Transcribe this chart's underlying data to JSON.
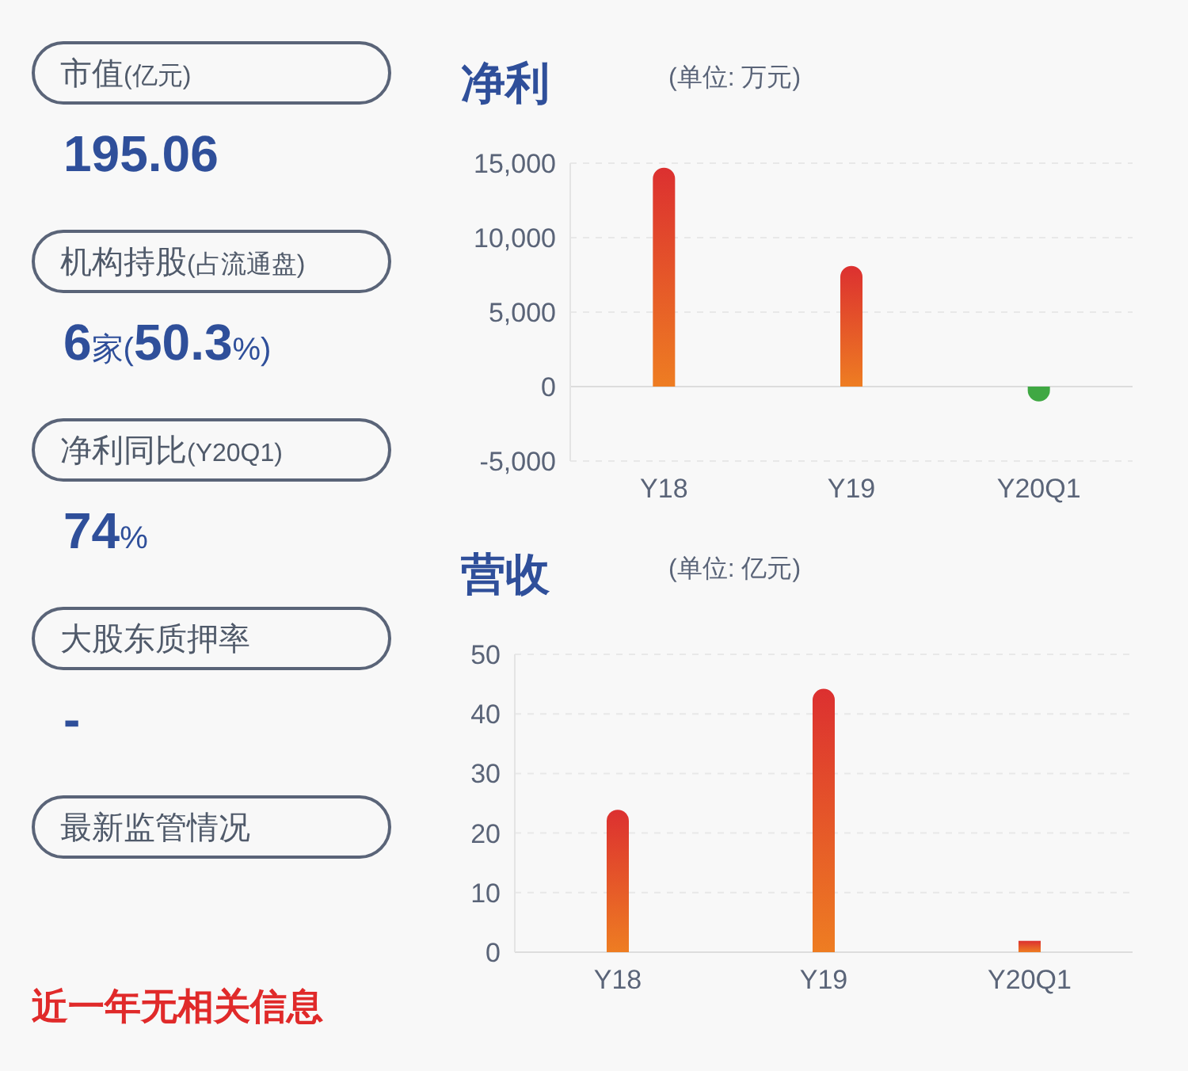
{
  "chart_data": [
    {
      "type": "other",
      "annotations": [
        "市值(亿元)",
        "195.06",
        "机构持股(占流通盘)",
        "6家(50.3%)",
        "净利同比(Y20Q1)",
        "74%",
        "大股东质押率",
        "-",
        "最新监管情况",
        "近一年无相关信息"
      ]
    },
    {
      "type": "bar",
      "title": "净利",
      "subtitle": "(单位: 万元)",
      "categories": [
        "Y18",
        "Y19",
        "Y20Q1"
      ],
      "values": [
        14700,
        8100,
        -1000
      ],
      "colors": [
        "#dc3030",
        "#dc3030",
        "#3fa843"
      ],
      "ylim": [
        -5000,
        15000
      ],
      "yticks": [
        {
          "value": -5000,
          "label": "-5,000"
        },
        0,
        {
          "value": 5000,
          "label": "5,000"
        },
        {
          "value": 10000,
          "label": "10,000"
        },
        {
          "value": 15000,
          "label": "15,000"
        }
      ],
      "grid": "y"
    },
    {
      "type": "bar",
      "title": "营收",
      "subtitle": "(单位: 亿元)",
      "categories": [
        "Y18",
        "Y19",
        "Y20Q1"
      ],
      "values": [
        23.9,
        44.2,
        1.9
      ],
      "colors": [
        "#dc3030",
        "#dc3030",
        "#dc3030"
      ],
      "ylim": [
        0,
        50
      ],
      "yticks": [
        0,
        10,
        20,
        30,
        40,
        50
      ],
      "grid": "y"
    }
  ]
}
